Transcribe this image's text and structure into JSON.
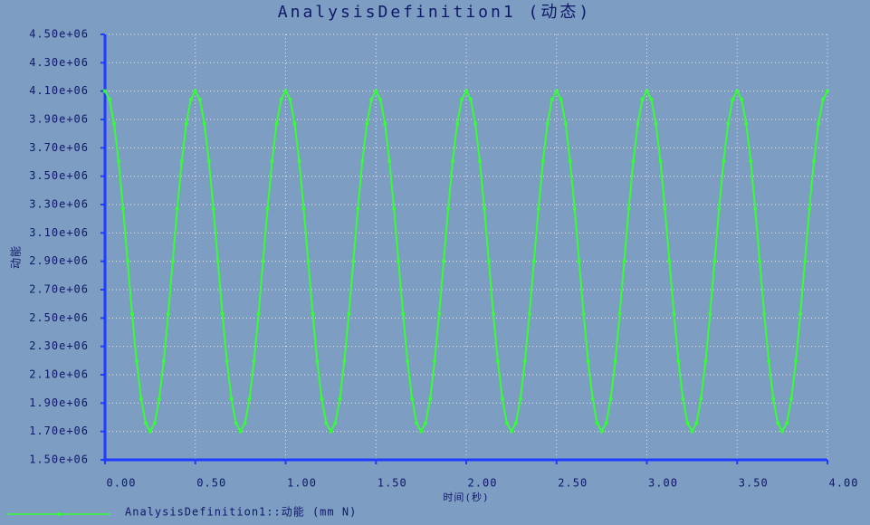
{
  "chart_data": {
    "type": "line",
    "title": "AnalysisDefinition1 (动态)",
    "x_label": "时间(秒)",
    "y_label": "动能",
    "grid": true,
    "xlim": [
      0,
      4
    ],
    "xticks": [
      {
        "value": 0,
        "label": "0.00"
      },
      {
        "value": 0.5,
        "label": "0.50"
      },
      {
        "value": 1,
        "label": "1.00"
      },
      {
        "value": 1.5,
        "label": "1.50"
      },
      {
        "value": 2,
        "label": "2.00"
      },
      {
        "value": 2.5,
        "label": "2.50"
      },
      {
        "value": 3,
        "label": "3.00"
      },
      {
        "value": 3.5,
        "label": "3.50"
      },
      {
        "value": 4,
        "label": "4.00"
      }
    ],
    "ylim": [
      1500000,
      4500000
    ],
    "yticks": [
      {
        "value": 1500000,
        "label": "1.50e+06"
      },
      {
        "value": 1700000,
        "label": "1.70e+06"
      },
      {
        "value": 1900000,
        "label": "1.90e+06"
      },
      {
        "value": 2100000,
        "label": "2.10e+06"
      },
      {
        "value": 2300000,
        "label": "2.30e+06"
      },
      {
        "value": 2500000,
        "label": "2.50e+06"
      },
      {
        "value": 2700000,
        "label": "2.70e+06"
      },
      {
        "value": 2900000,
        "label": "2.90e+06"
      },
      {
        "value": 3100000,
        "label": "3.10e+06"
      },
      {
        "value": 3300000,
        "label": "3.30e+06"
      },
      {
        "value": 3500000,
        "label": "3.50e+06"
      },
      {
        "value": 3700000,
        "label": "3.70e+06"
      },
      {
        "value": 3900000,
        "label": "3.90e+06"
      },
      {
        "value": 4100000,
        "label": "4.10e+06"
      },
      {
        "value": 4300000,
        "label": "4.30e+06"
      },
      {
        "value": 4500000,
        "label": "4.50e+06"
      }
    ],
    "x": [
      0,
      0.025,
      0.05,
      0.075,
      0.1,
      0.125,
      0.15,
      0.175,
      0.2,
      0.225,
      0.25,
      0.275,
      0.3,
      0.325,
      0.35,
      0.375,
      0.4,
      0.425,
      0.45,
      0.475,
      0.5,
      0.525,
      0.55,
      0.575,
      0.6,
      0.625,
      0.65,
      0.675,
      0.7,
      0.725,
      0.75,
      0.775,
      0.8,
      0.825,
      0.85,
      0.875,
      0.9,
      0.925,
      0.95,
      0.975,
      1,
      1.025,
      1.05,
      1.075,
      1.1,
      1.125,
      1.15,
      1.175,
      1.2,
      1.225,
      1.25,
      1.275,
      1.3,
      1.325,
      1.35,
      1.375,
      1.4,
      1.425,
      1.45,
      1.475,
      1.5,
      1.525,
      1.55,
      1.575,
      1.6,
      1.625,
      1.65,
      1.675,
      1.7,
      1.725,
      1.75,
      1.775,
      1.8,
      1.825,
      1.85,
      1.875,
      1.9,
      1.925,
      1.95,
      1.975,
      2,
      2.025,
      2.05,
      2.075,
      2.1,
      2.125,
      2.15,
      2.175,
      2.2,
      2.225,
      2.25,
      2.275,
      2.3,
      2.325,
      2.35,
      2.375,
      2.4,
      2.425,
      2.45,
      2.475,
      2.5,
      2.525,
      2.55,
      2.575,
      2.6,
      2.625,
      2.65,
      2.675,
      2.7,
      2.725,
      2.75,
      2.775,
      2.8,
      2.825,
      2.85,
      2.875,
      2.9,
      2.925,
      2.95,
      2.975,
      3,
      3.025,
      3.05,
      3.075,
      3.1,
      3.125,
      3.15,
      3.175,
      3.2,
      3.225,
      3.25,
      3.275,
      3.3,
      3.325,
      3.35,
      3.375,
      3.4,
      3.425,
      3.45,
      3.475,
      3.5,
      3.525,
      3.55,
      3.575,
      3.6,
      3.625,
      3.65,
      3.675,
      3.7,
      3.725,
      3.75,
      3.775,
      3.8,
      3.825,
      3.85,
      3.875,
      3.9,
      3.925,
      3.95,
      3.975,
      4
    ],
    "series": [
      {
        "name": "AnalysisDefinition1::动能 (mm N)",
        "color": "#33ff33",
        "values": [
          4100000,
          4041000,
          3871000,
          3606000,
          3271000,
          2900000,
          2529000,
          2194000,
          1929000,
          1759000,
          1700000,
          1759000,
          1929000,
          2194000,
          2529000,
          2900000,
          3271000,
          3606000,
          3871000,
          4041000,
          4100000,
          4041000,
          3871000,
          3606000,
          3271000,
          2900000,
          2529000,
          2194000,
          1929000,
          1759000,
          1700000,
          1759000,
          1929000,
          2194000,
          2529000,
          2900000,
          3271000,
          3606000,
          3871000,
          4041000,
          4100000,
          4041000,
          3871000,
          3606000,
          3271000,
          2900000,
          2529000,
          2194000,
          1929000,
          1759000,
          1700000,
          1759000,
          1929000,
          2194000,
          2529000,
          2900000,
          3271000,
          3606000,
          3871000,
          4041000,
          4100000,
          4041000,
          3871000,
          3606000,
          3271000,
          2900000,
          2529000,
          2194000,
          1929000,
          1759000,
          1700000,
          1759000,
          1929000,
          2194000,
          2529000,
          2900000,
          3271000,
          3606000,
          3871000,
          4041000,
          4100000,
          4041000,
          3871000,
          3606000,
          3271000,
          2900000,
          2529000,
          2194000,
          1929000,
          1759000,
          1700000,
          1759000,
          1929000,
          2194000,
          2529000,
          2900000,
          3271000,
          3606000,
          3871000,
          4041000,
          4100000,
          4041000,
          3871000,
          3606000,
          3271000,
          2900000,
          2529000,
          2194000,
          1929000,
          1759000,
          1700000,
          1759000,
          1929000,
          2194000,
          2529000,
          2900000,
          3271000,
          3606000,
          3871000,
          4041000,
          4100000,
          4041000,
          3871000,
          3606000,
          3271000,
          2900000,
          2529000,
          2194000,
          1929000,
          1759000,
          1700000,
          1759000,
          1929000,
          2194000,
          2529000,
          2900000,
          3271000,
          3606000,
          3871000,
          4041000,
          4100000,
          4041000,
          3871000,
          3606000,
          3271000,
          2900000,
          2529000,
          2194000,
          1929000,
          1759000,
          1700000,
          1759000,
          1929000,
          2194000,
          2529000,
          2900000,
          3271000,
          3606000,
          3871000,
          4041000,
          4100000
        ]
      }
    ]
  }
}
